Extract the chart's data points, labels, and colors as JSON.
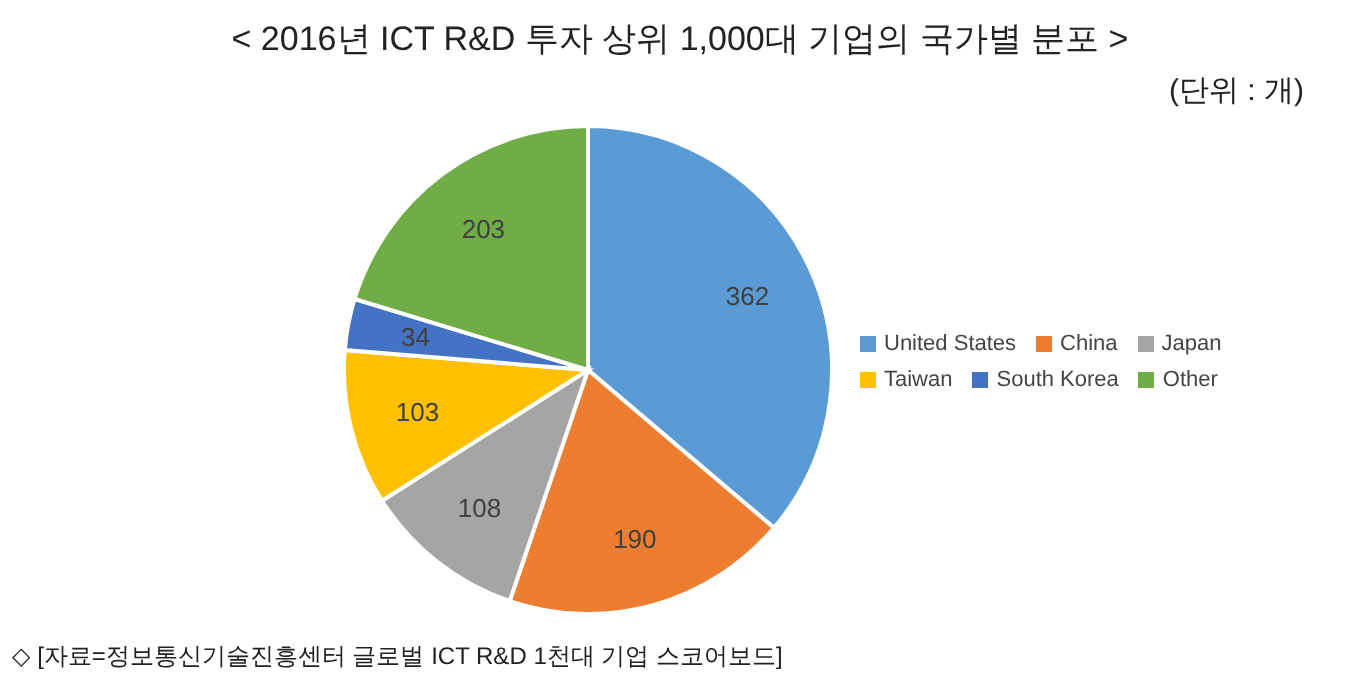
{
  "chart_data": {
    "type": "pie",
    "title": "< 2016년 ICT R&D 투자 상위 1,000대 기업의 국가별 분포 >",
    "subtitle": "(단위 : 개)",
    "categories": [
      "United States",
      "China",
      "Japan",
      "Taiwan",
      "South Korea",
      "Other"
    ],
    "values": [
      362,
      190,
      108,
      103,
      34,
      203
    ],
    "colors": [
      "#5b9bd5",
      "#ed7d31",
      "#a5a5a5",
      "#ffc000",
      "#4472c4",
      "#70ad47"
    ],
    "data_labels": true,
    "legend": "right",
    "annotations": [
      "◇ [자료=정보통신기술진흥센터 글로벌 ICT R&D 1천대 기업 스코어보드]"
    ]
  }
}
